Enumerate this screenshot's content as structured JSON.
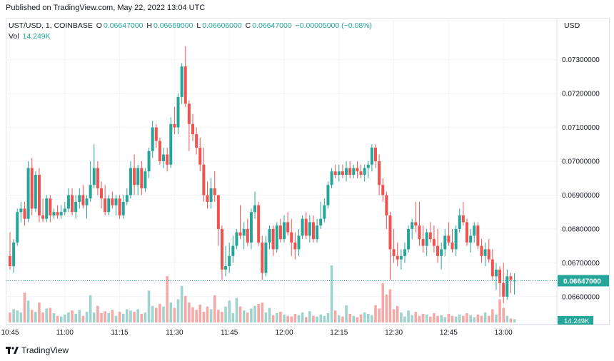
{
  "published_text": "Published on TradingView.com, May 22, 2022 13:04 UTC",
  "legend": {
    "symbol": "UST/USD, 1, COINBASE",
    "open_label": "O",
    "open_value": "0.06647000",
    "high_label": "H",
    "high_value": "0.06669000",
    "low_label": "L",
    "low_value": "0.06606000",
    "close_label": "C",
    "close_value": "0.06647000",
    "change": "−0.00005000 (−0.08%)",
    "vol_label": "Vol",
    "vol_value": "14.249K"
  },
  "currency": "USD",
  "last_price_tag": "0.06647000",
  "volume_tag": "14.249K",
  "footer": "TradingView",
  "colors": {
    "up": "#26a69a",
    "down": "#ef5350",
    "vol_up": "#9fd3cd",
    "vol_down": "#f5a9a7",
    "tag": "#26a69a"
  },
  "chart_data": {
    "type": "candlestick",
    "ylim": [
      0.0657,
      0.0735
    ],
    "yticks": [
      "0.07300000",
      "0.07200000",
      "0.07100000",
      "0.07000000",
      "0.06900000",
      "0.06800000",
      "0.06700000",
      "0.06600000"
    ],
    "ytick_values": [
      0.073,
      0.072,
      0.071,
      0.07,
      0.069,
      0.068,
      0.067,
      0.066
    ],
    "xticks": [
      "10:45",
      "11:00",
      "11:15",
      "11:30",
      "11:45",
      "12:00",
      "12:15",
      "12:30",
      "12:45",
      "13:00"
    ],
    "xtick_index": [
      0,
      15,
      30,
      45,
      60,
      75,
      90,
      105,
      120,
      135
    ],
    "last_price": 0.06647,
    "candles": [
      {
        "o": 0.0672,
        "h": 0.0679,
        "l": 0.0668,
        "c": 0.0669,
        "v": 1.5
      },
      {
        "o": 0.0669,
        "h": 0.0677,
        "l": 0.0667,
        "c": 0.0676,
        "v": 2.0
      },
      {
        "o": 0.0676,
        "h": 0.0686,
        "l": 0.0675,
        "c": 0.0685,
        "v": 1.8
      },
      {
        "o": 0.0685,
        "h": 0.0688,
        "l": 0.0682,
        "c": 0.0686,
        "v": 1.5
      },
      {
        "o": 0.0686,
        "h": 0.0688,
        "l": 0.0681,
        "c": 0.0683,
        "v": 4.5
      },
      {
        "o": 0.0683,
        "h": 0.07,
        "l": 0.0682,
        "c": 0.0698,
        "v": 3.3
      },
      {
        "o": 0.0698,
        "h": 0.0701,
        "l": 0.0684,
        "c": 0.0686,
        "v": 1.9
      },
      {
        "o": 0.0686,
        "h": 0.0697,
        "l": 0.0685,
        "c": 0.0696,
        "v": 1.6
      },
      {
        "o": 0.0696,
        "h": 0.0698,
        "l": 0.0682,
        "c": 0.0684,
        "v": 3.0
      },
      {
        "o": 0.0684,
        "h": 0.0689,
        "l": 0.0682,
        "c": 0.0683,
        "v": 1.5
      },
      {
        "o": 0.0683,
        "h": 0.069,
        "l": 0.0682,
        "c": 0.0689,
        "v": 2.1
      },
      {
        "o": 0.0689,
        "h": 0.069,
        "l": 0.0682,
        "c": 0.0684,
        "v": 2.2
      },
      {
        "o": 0.0684,
        "h": 0.0686,
        "l": 0.0683,
        "c": 0.0685,
        "v": 1.4
      },
      {
        "o": 0.0685,
        "h": 0.0687,
        "l": 0.0683,
        "c": 0.0684,
        "v": 1.0
      },
      {
        "o": 0.0684,
        "h": 0.0687,
        "l": 0.0683,
        "c": 0.0685,
        "v": 0.9
      },
      {
        "o": 0.0685,
        "h": 0.0688,
        "l": 0.0684,
        "c": 0.0686,
        "v": 1.2
      },
      {
        "o": 0.0686,
        "h": 0.0692,
        "l": 0.0685,
        "c": 0.069,
        "v": 1.5
      },
      {
        "o": 0.069,
        "h": 0.0692,
        "l": 0.0684,
        "c": 0.0685,
        "v": 1.8
      },
      {
        "o": 0.0685,
        "h": 0.069,
        "l": 0.0683,
        "c": 0.0688,
        "v": 1.3
      },
      {
        "o": 0.0688,
        "h": 0.0692,
        "l": 0.0686,
        "c": 0.069,
        "v": 1.9
      },
      {
        "o": 0.069,
        "h": 0.0693,
        "l": 0.0686,
        "c": 0.0687,
        "v": 1.0
      },
      {
        "o": 0.0687,
        "h": 0.069,
        "l": 0.0683,
        "c": 0.0689,
        "v": 1.6
      },
      {
        "o": 0.0689,
        "h": 0.07,
        "l": 0.0688,
        "c": 0.0693,
        "v": 4.1
      },
      {
        "o": 0.0693,
        "h": 0.0705,
        "l": 0.0692,
        "c": 0.0698,
        "v": 1.5
      },
      {
        "o": 0.0698,
        "h": 0.07,
        "l": 0.069,
        "c": 0.0692,
        "v": 2.5
      },
      {
        "o": 0.0692,
        "h": 0.0694,
        "l": 0.0686,
        "c": 0.0689,
        "v": 1.4
      },
      {
        "o": 0.0689,
        "h": 0.0693,
        "l": 0.0684,
        "c": 0.0685,
        "v": 1.7
      },
      {
        "o": 0.0685,
        "h": 0.069,
        "l": 0.0684,
        "c": 0.0689,
        "v": 1.4
      },
      {
        "o": 0.0689,
        "h": 0.0691,
        "l": 0.0686,
        "c": 0.0687,
        "v": 1.9
      },
      {
        "o": 0.0687,
        "h": 0.069,
        "l": 0.0684,
        "c": 0.0689,
        "v": 1.0
      },
      {
        "o": 0.0689,
        "h": 0.069,
        "l": 0.0683,
        "c": 0.0684,
        "v": 1.6
      },
      {
        "o": 0.0684,
        "h": 0.069,
        "l": 0.0683,
        "c": 0.0688,
        "v": 1.3
      },
      {
        "o": 0.0688,
        "h": 0.0692,
        "l": 0.0687,
        "c": 0.069,
        "v": 2.0
      },
      {
        "o": 0.069,
        "h": 0.07,
        "l": 0.0689,
        "c": 0.0698,
        "v": 1.8
      },
      {
        "o": 0.0698,
        "h": 0.0702,
        "l": 0.069,
        "c": 0.0693,
        "v": 1.6
      },
      {
        "o": 0.0693,
        "h": 0.0699,
        "l": 0.069,
        "c": 0.0698,
        "v": 2.0
      },
      {
        "o": 0.0698,
        "h": 0.07,
        "l": 0.069,
        "c": 0.0692,
        "v": 1.3
      },
      {
        "o": 0.0692,
        "h": 0.0698,
        "l": 0.0691,
        "c": 0.0697,
        "v": 1.5
      },
      {
        "o": 0.0697,
        "h": 0.0704,
        "l": 0.0695,
        "c": 0.0703,
        "v": 4.8
      },
      {
        "o": 0.0703,
        "h": 0.0712,
        "l": 0.0701,
        "c": 0.071,
        "v": 2.5
      },
      {
        "o": 0.071,
        "h": 0.0711,
        "l": 0.0704,
        "c": 0.0706,
        "v": 2.2
      },
      {
        "o": 0.0706,
        "h": 0.0707,
        "l": 0.0699,
        "c": 0.07,
        "v": 2.8
      },
      {
        "o": 0.07,
        "h": 0.0704,
        "l": 0.0698,
        "c": 0.0702,
        "v": 2.4
      },
      {
        "o": 0.0702,
        "h": 0.0704,
        "l": 0.0697,
        "c": 0.0699,
        "v": 7.0
      },
      {
        "o": 0.0699,
        "h": 0.0713,
        "l": 0.0698,
        "c": 0.0711,
        "v": 3.0
      },
      {
        "o": 0.0711,
        "h": 0.0716,
        "l": 0.0708,
        "c": 0.071,
        "v": 2.2
      },
      {
        "o": 0.071,
        "h": 0.072,
        "l": 0.0708,
        "c": 0.0719,
        "v": 3.5
      },
      {
        "o": 0.0719,
        "h": 0.0729,
        "l": 0.0717,
        "c": 0.0728,
        "v": 5.5
      },
      {
        "o": 0.0728,
        "h": 0.0734,
        "l": 0.0716,
        "c": 0.0717,
        "v": 4.0
      },
      {
        "o": 0.0717,
        "h": 0.0718,
        "l": 0.0703,
        "c": 0.0711,
        "v": 3.0
      },
      {
        "o": 0.0711,
        "h": 0.0714,
        "l": 0.0706,
        "c": 0.0708,
        "v": 2.3
      },
      {
        "o": 0.0708,
        "h": 0.071,
        "l": 0.0702,
        "c": 0.0704,
        "v": 1.9
      },
      {
        "o": 0.0704,
        "h": 0.0707,
        "l": 0.0697,
        "c": 0.0699,
        "v": 2.7
      },
      {
        "o": 0.0699,
        "h": 0.0704,
        "l": 0.0688,
        "c": 0.069,
        "v": 1.6
      },
      {
        "o": 0.069,
        "h": 0.0694,
        "l": 0.0686,
        "c": 0.0688,
        "v": 2.4
      },
      {
        "o": 0.0688,
        "h": 0.0695,
        "l": 0.0686,
        "c": 0.0692,
        "v": 2.0
      },
      {
        "o": 0.0692,
        "h": 0.0697,
        "l": 0.0688,
        "c": 0.069,
        "v": 4.1
      },
      {
        "o": 0.069,
        "h": 0.069,
        "l": 0.0675,
        "c": 0.068,
        "v": 1.9
      },
      {
        "o": 0.068,
        "h": 0.0681,
        "l": 0.0665,
        "c": 0.0668,
        "v": 1.6
      },
      {
        "o": 0.0668,
        "h": 0.0675,
        "l": 0.0666,
        "c": 0.0669,
        "v": 2.4
      },
      {
        "o": 0.0669,
        "h": 0.0676,
        "l": 0.0667,
        "c": 0.0672,
        "v": 3.3
      },
      {
        "o": 0.0672,
        "h": 0.0678,
        "l": 0.067,
        "c": 0.0675,
        "v": 1.4
      },
      {
        "o": 0.0675,
        "h": 0.068,
        "l": 0.0674,
        "c": 0.0679,
        "v": 3.7
      },
      {
        "o": 0.0679,
        "h": 0.0687,
        "l": 0.0677,
        "c": 0.0678,
        "v": 2.4
      },
      {
        "o": 0.0678,
        "h": 0.0682,
        "l": 0.0674,
        "c": 0.068,
        "v": 1.8
      },
      {
        "o": 0.068,
        "h": 0.0683,
        "l": 0.0675,
        "c": 0.0676,
        "v": 1.5
      },
      {
        "o": 0.0676,
        "h": 0.0686,
        "l": 0.0674,
        "c": 0.0685,
        "v": 2.1
      },
      {
        "o": 0.0685,
        "h": 0.0691,
        "l": 0.0683,
        "c": 0.0687,
        "v": 2.5
      },
      {
        "o": 0.0687,
        "h": 0.0688,
        "l": 0.0675,
        "c": 0.0676,
        "v": 2.8
      },
      {
        "o": 0.0676,
        "h": 0.0678,
        "l": 0.0665,
        "c": 0.0667,
        "v": 3.0
      },
      {
        "o": 0.0667,
        "h": 0.0678,
        "l": 0.0666,
        "c": 0.0676,
        "v": 1.5
      },
      {
        "o": 0.0676,
        "h": 0.0681,
        "l": 0.0674,
        "c": 0.068,
        "v": 2.2
      },
      {
        "o": 0.068,
        "h": 0.0681,
        "l": 0.0672,
        "c": 0.0674,
        "v": 1.1
      },
      {
        "o": 0.0674,
        "h": 0.0682,
        "l": 0.0673,
        "c": 0.0681,
        "v": 1.4
      },
      {
        "o": 0.0681,
        "h": 0.0683,
        "l": 0.0676,
        "c": 0.0677,
        "v": 1.6
      },
      {
        "o": 0.0677,
        "h": 0.0684,
        "l": 0.0676,
        "c": 0.0682,
        "v": 1.2
      },
      {
        "o": 0.0682,
        "h": 0.0685,
        "l": 0.0678,
        "c": 0.0679,
        "v": 1.0
      },
      {
        "o": 0.0679,
        "h": 0.0683,
        "l": 0.0672,
        "c": 0.0676,
        "v": 0.9
      },
      {
        "o": 0.0676,
        "h": 0.0679,
        "l": 0.0671,
        "c": 0.0674,
        "v": 1.3
      },
      {
        "o": 0.0674,
        "h": 0.068,
        "l": 0.0672,
        "c": 0.0678,
        "v": 1.1
      },
      {
        "o": 0.0678,
        "h": 0.0684,
        "l": 0.0677,
        "c": 0.0683,
        "v": 1.5
      },
      {
        "o": 0.0683,
        "h": 0.0685,
        "l": 0.0677,
        "c": 0.0678,
        "v": 0.8
      },
      {
        "o": 0.0678,
        "h": 0.0684,
        "l": 0.0676,
        "c": 0.0682,
        "v": 1.7
      },
      {
        "o": 0.0682,
        "h": 0.0684,
        "l": 0.0676,
        "c": 0.0677,
        "v": 1.0
      },
      {
        "o": 0.0677,
        "h": 0.0683,
        "l": 0.0676,
        "c": 0.0681,
        "v": 0.9
      },
      {
        "o": 0.0681,
        "h": 0.0688,
        "l": 0.068,
        "c": 0.0683,
        "v": 1.2
      },
      {
        "o": 0.0683,
        "h": 0.0689,
        "l": 0.0682,
        "c": 0.0687,
        "v": 1.0
      },
      {
        "o": 0.0687,
        "h": 0.0694,
        "l": 0.0686,
        "c": 0.0693,
        "v": 1.4
      },
      {
        "o": 0.0693,
        "h": 0.0698,
        "l": 0.0692,
        "c": 0.0697,
        "v": 8.6
      },
      {
        "o": 0.0697,
        "h": 0.0699,
        "l": 0.0695,
        "c": 0.0696,
        "v": 1.8
      },
      {
        "o": 0.0696,
        "h": 0.0699,
        "l": 0.0694,
        "c": 0.0697,
        "v": 1.1
      },
      {
        "o": 0.0697,
        "h": 0.0699,
        "l": 0.0695,
        "c": 0.0696,
        "v": 0.9
      },
      {
        "o": 0.0696,
        "h": 0.07,
        "l": 0.0694,
        "c": 0.0698,
        "v": 2.6
      },
      {
        "o": 0.0698,
        "h": 0.07,
        "l": 0.0695,
        "c": 0.0696,
        "v": 1.3
      },
      {
        "o": 0.0696,
        "h": 0.0699,
        "l": 0.0695,
        "c": 0.0698,
        "v": 1.0
      },
      {
        "o": 0.0698,
        "h": 0.07,
        "l": 0.0695,
        "c": 0.0697,
        "v": 0.8
      },
      {
        "o": 0.0697,
        "h": 0.0699,
        "l": 0.0695,
        "c": 0.0696,
        "v": 1.2
      },
      {
        "o": 0.0696,
        "h": 0.0699,
        "l": 0.0694,
        "c": 0.0698,
        "v": 1.5
      },
      {
        "o": 0.0698,
        "h": 0.07,
        "l": 0.0695,
        "c": 0.0699,
        "v": 1.3
      },
      {
        "o": 0.0699,
        "h": 0.0705,
        "l": 0.0697,
        "c": 0.0704,
        "v": 1.1
      },
      {
        "o": 0.0704,
        "h": 0.0705,
        "l": 0.0698,
        "c": 0.07,
        "v": 2.6
      },
      {
        "o": 0.07,
        "h": 0.0702,
        "l": 0.069,
        "c": 0.0693,
        "v": 2.1
      },
      {
        "o": 0.0693,
        "h": 0.0695,
        "l": 0.0688,
        "c": 0.069,
        "v": 5.9
      },
      {
        "o": 0.069,
        "h": 0.0691,
        "l": 0.068,
        "c": 0.0684,
        "v": 4.2
      },
      {
        "o": 0.0684,
        "h": 0.0685,
        "l": 0.0665,
        "c": 0.0674,
        "v": 5.0
      },
      {
        "o": 0.0674,
        "h": 0.068,
        "l": 0.067,
        "c": 0.0672,
        "v": 2.0
      },
      {
        "o": 0.0672,
        "h": 0.0676,
        "l": 0.0669,
        "c": 0.0671,
        "v": 2.5
      },
      {
        "o": 0.0671,
        "h": 0.0674,
        "l": 0.0668,
        "c": 0.0672,
        "v": 1.5
      },
      {
        "o": 0.0672,
        "h": 0.0676,
        "l": 0.067,
        "c": 0.0674,
        "v": 0.9
      },
      {
        "o": 0.0674,
        "h": 0.0681,
        "l": 0.0673,
        "c": 0.068,
        "v": 1.8
      },
      {
        "o": 0.068,
        "h": 0.0683,
        "l": 0.0677,
        "c": 0.0682,
        "v": 1.1
      },
      {
        "o": 0.0682,
        "h": 0.0688,
        "l": 0.0679,
        "c": 0.0681,
        "v": 1.6
      },
      {
        "o": 0.0681,
        "h": 0.0688,
        "l": 0.0675,
        "c": 0.0677,
        "v": 1.0
      },
      {
        "o": 0.0677,
        "h": 0.0681,
        "l": 0.0673,
        "c": 0.0675,
        "v": 1.3
      },
      {
        "o": 0.0675,
        "h": 0.068,
        "l": 0.0672,
        "c": 0.0679,
        "v": 1.2
      },
      {
        "o": 0.0679,
        "h": 0.0682,
        "l": 0.0676,
        "c": 0.0677,
        "v": 0.9
      },
      {
        "o": 0.0677,
        "h": 0.0681,
        "l": 0.0673,
        "c": 0.0675,
        "v": 1.4
      },
      {
        "o": 0.0675,
        "h": 0.068,
        "l": 0.067,
        "c": 0.0672,
        "v": 1.0
      },
      {
        "o": 0.0672,
        "h": 0.0676,
        "l": 0.0668,
        "c": 0.0674,
        "v": 1.1
      },
      {
        "o": 0.0674,
        "h": 0.068,
        "l": 0.0672,
        "c": 0.0678,
        "v": 0.8
      },
      {
        "o": 0.0678,
        "h": 0.0682,
        "l": 0.0675,
        "c": 0.0676,
        "v": 1.3
      },
      {
        "o": 0.0676,
        "h": 0.068,
        "l": 0.0673,
        "c": 0.0674,
        "v": 1.0
      },
      {
        "o": 0.0674,
        "h": 0.0681,
        "l": 0.0672,
        "c": 0.068,
        "v": 0.9
      },
      {
        "o": 0.068,
        "h": 0.0686,
        "l": 0.0679,
        "c": 0.0684,
        "v": 1.2
      },
      {
        "o": 0.0684,
        "h": 0.0688,
        "l": 0.0681,
        "c": 0.0682,
        "v": 1.0
      },
      {
        "o": 0.0682,
        "h": 0.0683,
        "l": 0.0675,
        "c": 0.0676,
        "v": 1.4
      },
      {
        "o": 0.0676,
        "h": 0.068,
        "l": 0.0673,
        "c": 0.0678,
        "v": 1.1
      },
      {
        "o": 0.0678,
        "h": 0.0682,
        "l": 0.0676,
        "c": 0.0681,
        "v": 0.8
      },
      {
        "o": 0.0681,
        "h": 0.0682,
        "l": 0.0674,
        "c": 0.0675,
        "v": 1.2
      },
      {
        "o": 0.0675,
        "h": 0.0677,
        "l": 0.067,
        "c": 0.0672,
        "v": 1.0
      },
      {
        "o": 0.0672,
        "h": 0.0676,
        "l": 0.0669,
        "c": 0.0674,
        "v": 1.5
      },
      {
        "o": 0.0674,
        "h": 0.0677,
        "l": 0.067,
        "c": 0.0671,
        "v": 1.0
      },
      {
        "o": 0.0671,
        "h": 0.0674,
        "l": 0.0665,
        "c": 0.0666,
        "v": 2.0
      },
      {
        "o": 0.0666,
        "h": 0.067,
        "l": 0.0662,
        "c": 0.0668,
        "v": 1.2
      },
      {
        "o": 0.0668,
        "h": 0.0669,
        "l": 0.066,
        "c": 0.0664,
        "v": 3.5
      },
      {
        "o": 0.0664,
        "h": 0.067,
        "l": 0.0658,
        "c": 0.066,
        "v": 2.2
      },
      {
        "o": 0.066,
        "h": 0.0668,
        "l": 0.0659,
        "c": 0.0666,
        "v": 1.0
      },
      {
        "o": 0.0666,
        "h": 0.0667,
        "l": 0.0661,
        "c": 0.0665,
        "v": 0.6
      },
      {
        "o": 0.06647,
        "h": 0.06669,
        "l": 0.06606,
        "c": 0.06647,
        "v": 0.5
      }
    ]
  }
}
